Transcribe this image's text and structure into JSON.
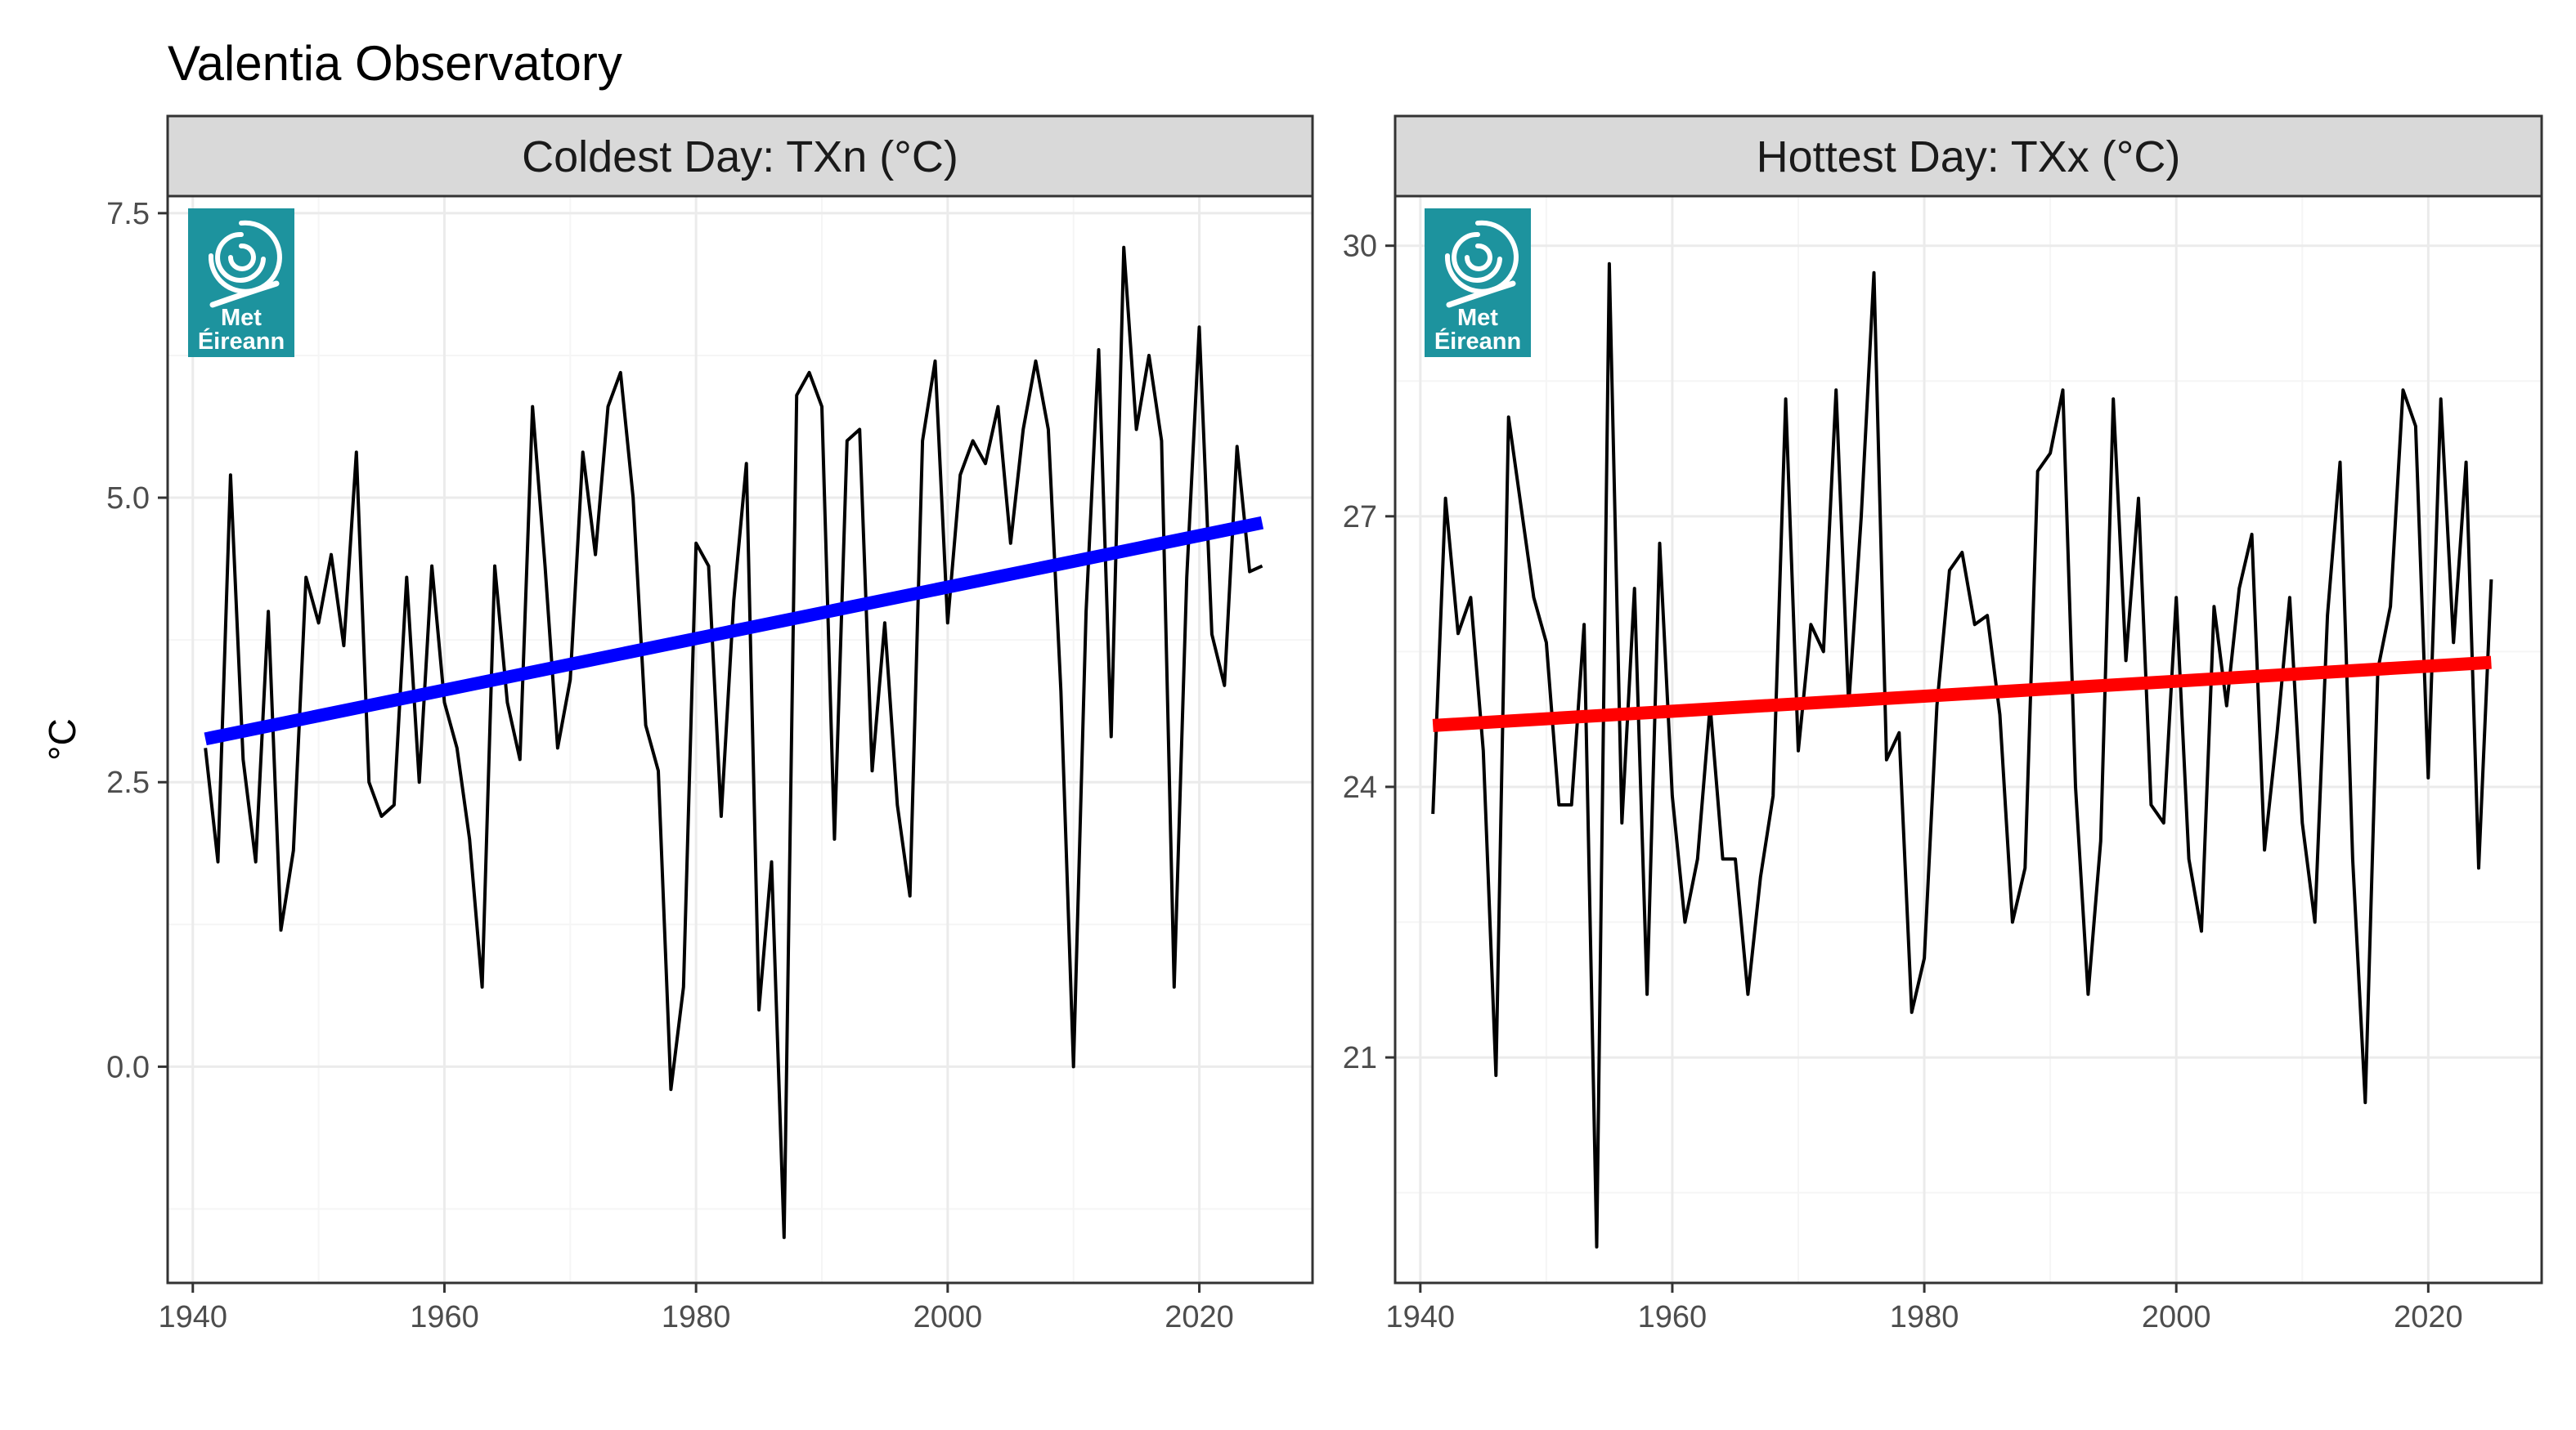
{
  "title": "Valentia Observatory",
  "ylabel": "°C",
  "logo": {
    "icon": "met-eireann-swirl-icon",
    "line1": "Met",
    "line2": "Éireann",
    "color": "#1d939e"
  },
  "colors": {
    "strip_bg": "#d9d9d9",
    "grid_major": "#ebebeb",
    "grid_minor": "#f5f5f5",
    "series": "#000000",
    "panel_border": "#333333"
  },
  "chart_data": [
    {
      "type": "line",
      "panel": "Coldest Day: TXn (°C)",
      "xlim": [
        1938,
        2029
      ],
      "ylim": [
        -1.9,
        7.65
      ],
      "x_ticks": [
        1940,
        1960,
        1980,
        2000,
        2020
      ],
      "y_ticks": [
        0.0,
        2.5,
        5.0,
        7.5
      ],
      "y_tick_labels": [
        "0.0",
        "2.5",
        "5.0",
        "7.5"
      ],
      "grid": true,
      "trend": {
        "color": "#0000ff",
        "x": [
          1941,
          2025
        ],
        "y": [
          2.88,
          4.78
        ]
      },
      "x": [
        1941,
        1942,
        1943,
        1944,
        1945,
        1946,
        1947,
        1948,
        1949,
        1950,
        1951,
        1952,
        1953,
        1954,
        1955,
        1956,
        1957,
        1958,
        1959,
        1960,
        1961,
        1962,
        1963,
        1964,
        1965,
        1966,
        1967,
        1968,
        1969,
        1970,
        1971,
        1972,
        1973,
        1974,
        1975,
        1976,
        1977,
        1978,
        1979,
        1980,
        1981,
        1982,
        1983,
        1984,
        1985,
        1986,
        1987,
        1988,
        1989,
        1990,
        1991,
        1992,
        1993,
        1994,
        1995,
        1996,
        1997,
        1998,
        1999,
        2000,
        2001,
        2002,
        2003,
        2004,
        2005,
        2006,
        2007,
        2008,
        2009,
        2010,
        2011,
        2012,
        2013,
        2014,
        2015,
        2016,
        2017,
        2018,
        2019,
        2020,
        2021,
        2022,
        2023,
        2024,
        2025
      ],
      "y": [
        2.8,
        1.8,
        5.2,
        2.7,
        1.8,
        4.0,
        1.2,
        1.9,
        4.3,
        3.9,
        4.5,
        3.7,
        5.4,
        2.5,
        2.2,
        2.3,
        4.3,
        2.5,
        4.4,
        3.2,
        2.8,
        2.0,
        0.7,
        4.4,
        3.2,
        2.7,
        5.8,
        4.4,
        2.8,
        3.4,
        5.4,
        4.5,
        5.8,
        6.1,
        5.0,
        3.0,
        2.6,
        -0.2,
        0.7,
        4.6,
        4.4,
        2.2,
        4.1,
        5.3,
        0.5,
        1.8,
        -1.5,
        5.9,
        6.1,
        5.8,
        2.0,
        5.5,
        5.6,
        2.6,
        3.9,
        2.3,
        1.5,
        5.5,
        6.2,
        3.9,
        5.2,
        5.5,
        5.3,
        5.8,
        4.6,
        5.6,
        6.2,
        5.6,
        3.3,
        0.0,
        4.0,
        6.3,
        2.9,
        7.2,
        5.6,
        6.25,
        5.5,
        0.7,
        4.3,
        6.5,
        3.8,
        3.35,
        5.45,
        4.35,
        4.4
      ]
    },
    {
      "type": "line",
      "panel": "Hottest Day: TXx (°C)",
      "xlim": [
        1938,
        2029
      ],
      "ylim": [
        18.5,
        30.55
      ],
      "x_ticks": [
        1940,
        1960,
        1980,
        2000,
        2020
      ],
      "y_ticks": [
        21,
        24,
        27,
        30
      ],
      "y_tick_labels": [
        "21",
        "24",
        "27",
        "30"
      ],
      "grid": true,
      "trend": {
        "color": "#ff0000",
        "x": [
          1941,
          2025
        ],
        "y": [
          24.68,
          25.38
        ]
      },
      "x": [
        1941,
        1942,
        1943,
        1944,
        1945,
        1946,
        1947,
        1948,
        1949,
        1950,
        1951,
        1952,
        1953,
        1954,
        1955,
        1956,
        1957,
        1958,
        1959,
        1960,
        1961,
        1962,
        1963,
        1964,
        1965,
        1966,
        1967,
        1968,
        1969,
        1970,
        1971,
        1972,
        1973,
        1974,
        1975,
        1976,
        1977,
        1978,
        1979,
        1980,
        1981,
        1982,
        1983,
        1984,
        1985,
        1986,
        1987,
        1988,
        1989,
        1990,
        1991,
        1992,
        1993,
        1994,
        1995,
        1996,
        1997,
        1998,
        1999,
        2000,
        2001,
        2002,
        2003,
        2004,
        2005,
        2006,
        2007,
        2008,
        2009,
        2010,
        2011,
        2012,
        2013,
        2014,
        2015,
        2016,
        2017,
        2018,
        2019,
        2020,
        2021,
        2022,
        2023,
        2024,
        2025
      ],
      "y": [
        23.7,
        27.2,
        25.7,
        26.1,
        24.4,
        20.8,
        28.1,
        27.1,
        26.1,
        25.6,
        23.8,
        23.8,
        25.8,
        18.9,
        29.8,
        23.6,
        26.2,
        21.7,
        26.7,
        23.9,
        22.5,
        23.2,
        24.9,
        23.2,
        23.2,
        21.7,
        23.0,
        23.9,
        28.3,
        24.4,
        25.8,
        25.5,
        28.4,
        24.9,
        27.0,
        29.7,
        24.3,
        24.6,
        21.5,
        22.1,
        24.9,
        26.4,
        26.6,
        25.8,
        25.9,
        24.8,
        22.5,
        23.1,
        27.5,
        27.7,
        28.4,
        24.0,
        21.7,
        23.4,
        28.3,
        25.4,
        27.2,
        23.8,
        23.6,
        26.1,
        23.2,
        22.4,
        26.0,
        24.9,
        26.2,
        26.8,
        23.3,
        24.6,
        26.1,
        23.6,
        22.5,
        25.9,
        27.6,
        23.2,
        20.5,
        25.3,
        26.0,
        28.4,
        28.0,
        24.1,
        28.3,
        25.6,
        27.6,
        23.1,
        26.3
      ]
    }
  ]
}
